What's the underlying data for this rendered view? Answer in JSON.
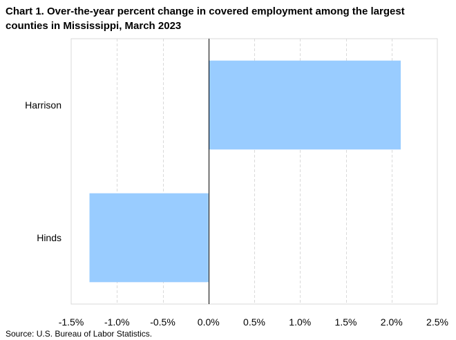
{
  "chart_data": {
    "type": "bar",
    "orientation": "horizontal",
    "title": "Chart 1. Over-the-year percent change in covered employment among the largest counties in Mississippi,  March 2023",
    "categories": [
      "Harrison",
      "Hinds"
    ],
    "values": [
      2.1,
      -1.3
    ],
    "xlim": [
      -1.5,
      2.5
    ],
    "x_ticks": [
      -1.5,
      -1.0,
      -0.5,
      0.0,
      0.5,
      1.0,
      1.5,
      2.0,
      2.5
    ],
    "x_tick_labels": [
      "-1.5%",
      "-1.0%",
      "-0.5%",
      "0.0%",
      "0.5%",
      "1.0%",
      "1.5%",
      "2.0%",
      "2.5%"
    ],
    "xlabel": "",
    "ylabel": "",
    "grid": "vertical dashed",
    "legend": "none",
    "bar_color": "#99ccff",
    "source": "Source: U.S. Bureau of Labor Statistics."
  }
}
